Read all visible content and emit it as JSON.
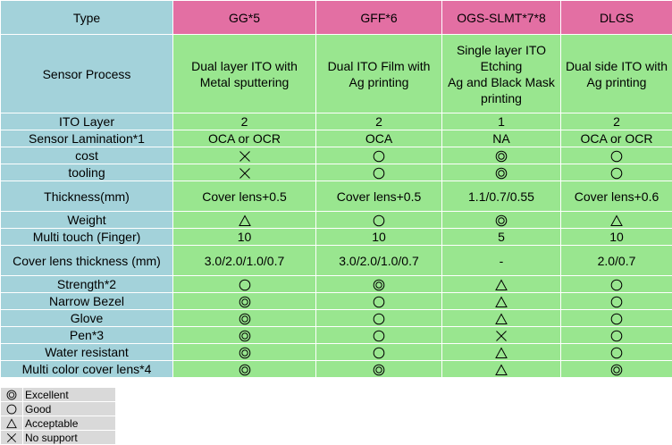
{
  "table": {
    "header": {
      "type_label": "Type",
      "col1": "GG*5",
      "col2": "GFF*6",
      "col3": "OGS-SLMT*7*8",
      "col4": "DLGS"
    },
    "rows": [
      {
        "label": "Sensor Process",
        "c1": "Dual layer ITO with\nMetal sputtering",
        "c2": "Dual ITO Film with\nAg printing",
        "c3": "Single layer ITO\nEtching\nAg and Black Mask\nprinting",
        "c4": "Dual side ITO with\nAg printing"
      },
      {
        "label": "ITO Layer",
        "c1": "2",
        "c2": "2",
        "c3": "1",
        "c4": "2"
      },
      {
        "label": "Sensor Lamination*1",
        "c1": "OCA or OCR",
        "c2": "OCA",
        "c3": "NA",
        "c4": "OCA or OCR"
      },
      {
        "label": "cost",
        "c1": "cross",
        "c2": "circle",
        "c3": "double-circle",
        "c4": "circle"
      },
      {
        "label": "tooling",
        "c1": "cross",
        "c2": "circle",
        "c3": "double-circle",
        "c4": "circle"
      },
      {
        "label": "Thickness(mm)",
        "c1": "Cover lens+0.5",
        "c2": "Cover lens+0.5",
        "c3": "1.1/0.7/0.55",
        "c4": "Cover lens+0.6"
      },
      {
        "label": "Weight",
        "c1": "triangle",
        "c2": "circle",
        "c3": "double-circle",
        "c4": "triangle"
      },
      {
        "label": "Multi touch (Finger)",
        "c1": "10",
        "c2": "10",
        "c3": "5",
        "c4": "10"
      },
      {
        "label": "Cover lens thickness (mm)",
        "c1": "3.0/2.0/1.0/0.7",
        "c2": "3.0/2.0/1.0/0.7",
        "c3": "-",
        "c4": "2.0/0.7"
      },
      {
        "label": "Strength*2",
        "c1": "circle",
        "c2": "double-circle",
        "c3": "triangle",
        "c4": "circle"
      },
      {
        "label": "Narrow Bezel",
        "c1": "double-circle",
        "c2": "circle",
        "c3": "triangle",
        "c4": "circle"
      },
      {
        "label": "Glove",
        "c1": "double-circle",
        "c2": "circle",
        "c3": "triangle",
        "c4": "circle"
      },
      {
        "label": "Pen*3",
        "c1": "double-circle",
        "c2": "circle",
        "c3": "cross",
        "c4": "circle"
      },
      {
        "label": "Water resistant",
        "c1": "double-circle",
        "c2": "circle",
        "c3": "triangle",
        "c4": "circle"
      },
      {
        "label": "Multi color cover lens*4",
        "c1": "double-circle",
        "c2": "double-circle",
        "c3": "triangle",
        "c4": "double-circle"
      }
    ]
  },
  "legend": [
    {
      "icon": "double-circle",
      "label": "Excellent"
    },
    {
      "icon": "circle",
      "label": "Good"
    },
    {
      "icon": "triangle",
      "label": "Acceptable"
    },
    {
      "icon": "cross",
      "label": "No support"
    }
  ],
  "colors": {
    "header": "#e36fa3",
    "label": "#a3d2da",
    "value": "#99e68f",
    "legend": "#d9d9d9"
  }
}
